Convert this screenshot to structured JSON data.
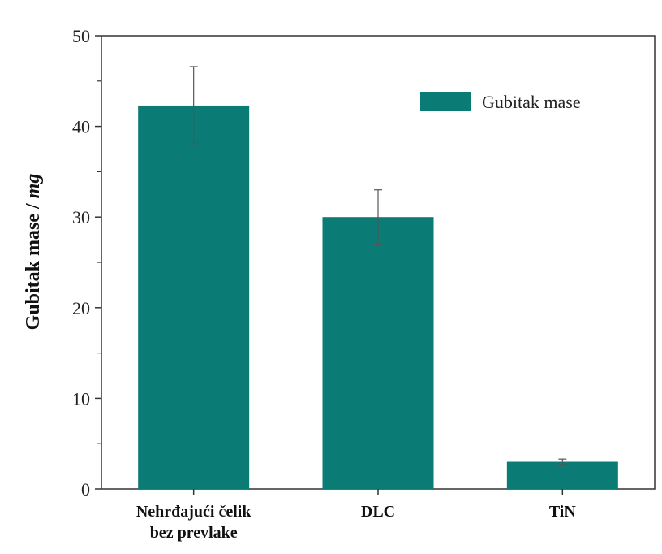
{
  "chart_data": {
    "type": "bar",
    "categories": [
      "Nehrđajući čelik bez prevlake",
      "DLC",
      "TiN"
    ],
    "category_lines": [
      [
        "Nehrđajući čelik",
        "bez prevlake"
      ],
      [
        "DLC"
      ],
      [
        "TiN"
      ]
    ],
    "series": [
      {
        "name": "Gubitak mase",
        "values": [
          42.3,
          30.0,
          3.0
        ],
        "error_low": [
          38.1,
          27.0,
          2.7
        ],
        "error_high": [
          46.6,
          33.0,
          3.3
        ]
      }
    ],
    "ylabel_prefix": "Gubitak mase / ",
    "ylabel_unit": "mg",
    "xlabel": "",
    "ylim": [
      0,
      50
    ],
    "yticks": [
      0,
      10,
      20,
      30,
      40,
      50
    ],
    "grid": false,
    "legend": "top-right",
    "bar_color": "#0b7b76",
    "error_bar_color": "#555555",
    "axis_color": "#333333"
  }
}
